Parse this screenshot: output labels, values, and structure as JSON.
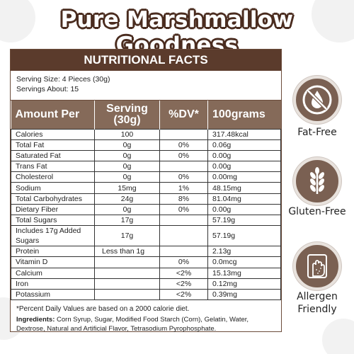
{
  "title": "Pure Marshmallow Goodness",
  "panel": {
    "header": "NUTRITIONAL FACTS",
    "serving_size": "Serving Size: 4 Pieces (30g)",
    "servings_about": "Servings About: 15",
    "columns": [
      "Amount Per",
      "Serving (30g)",
      "%DV*",
      "100grams"
    ],
    "rows": [
      [
        "Calories",
        "100",
        "",
        "317.48kcal"
      ],
      [
        "Total Fat",
        "0g",
        "0%",
        "0.06g"
      ],
      [
        "Saturated Fat",
        "0g",
        "0%",
        "0.00g"
      ],
      [
        "Trans Fat",
        "0g",
        "",
        "0.00g"
      ],
      [
        "Cholesterol",
        "0g",
        "0%",
        "0.00mg"
      ],
      [
        "Sodium",
        "15mg",
        "1%",
        "48.15mg"
      ],
      [
        "Total Carbohydrates",
        "24g",
        "8%",
        "81.04mg"
      ],
      [
        "Dietary Fiber",
        "0g",
        "0%",
        "0.00g"
      ],
      [
        "Total Sugars",
        "17g",
        "",
        "57.19g"
      ],
      [
        "Includes 17g Added Sugars",
        "17g",
        "",
        "57.19g"
      ],
      [
        "Protein",
        "Less than 1g",
        "",
        "2.13g"
      ],
      [
        "Vitamin D",
        "",
        "0%",
        "0.0mcg"
      ],
      [
        "Calcium",
        "",
        "<2%",
        "15.13mg"
      ],
      [
        "Iron",
        "",
        "<2%",
        "0.12mg"
      ],
      [
        "Potassium",
        "",
        "<2%",
        "0.39mg"
      ]
    ],
    "footnote": "*Percent Daily Values are based on a 2000 calorie diet.",
    "ingredients_label": "Ingredients:",
    "ingredients_text": " Corn Syrup, Sugar, Modified Food Starch (Corn), Gelatin, Water, Dextrose, Natural and Artificial Flavor, Tetrasodium Pyrophosphate."
  },
  "badges": [
    {
      "label": "Fat-Free",
      "icon": "no-drop-icon"
    },
    {
      "label": "Gluten-Free",
      "icon": "wheat-icon"
    },
    {
      "label": "Allergen Friendly",
      "icon": "hand-shield-icon"
    }
  ],
  "colors": {
    "brand_brown": "#5b3b2c",
    "header_tan": "#856a59",
    "badge_brown": "#7a6052"
  }
}
